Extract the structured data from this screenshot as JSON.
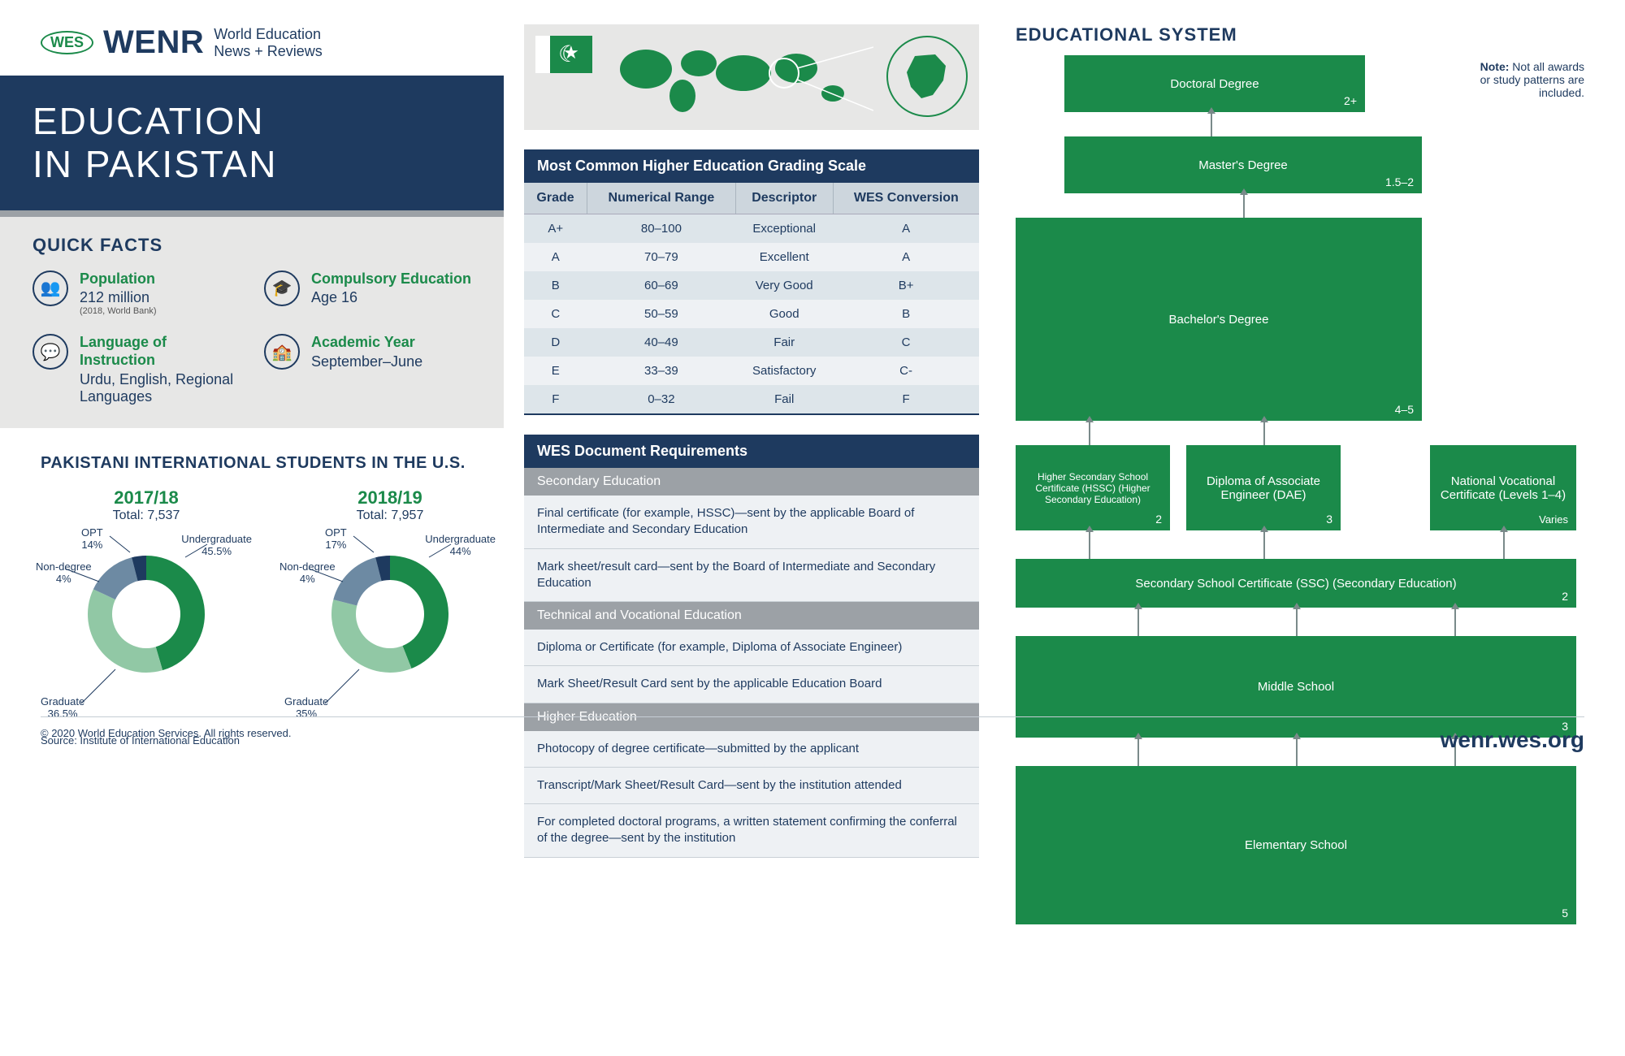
{
  "header": {
    "wes": "WES",
    "wenr": "WENR",
    "sub1": "World Education",
    "sub2": "News + Reviews"
  },
  "title": {
    "line1": "EDUCATION",
    "line2": "IN PAKISTAN"
  },
  "quick_facts": {
    "title": "QUICK FACTS",
    "items": [
      {
        "label": "Population",
        "value": "212 million",
        "sub": "(2018, World Bank)"
      },
      {
        "label": "Compulsory Education",
        "value": "Age 16",
        "sub": ""
      },
      {
        "label": "Language of Instruction",
        "value": "Urdu, English, Regional Languages",
        "sub": ""
      },
      {
        "label": "Academic Year",
        "value": "September–June",
        "sub": ""
      }
    ]
  },
  "students": {
    "title": "PAKISTANI INTERNATIONAL STUDENTS IN THE U.S.",
    "source": "Source: Institute of International Education",
    "colors": {
      "undergrad": "#1b8a4a",
      "graduate": "#91c8a5",
      "opt": "#6d8aa3",
      "nondegree": "#1e3a5f"
    },
    "labels": {
      "undergrad": "Undergraduate",
      "graduate": "Graduate",
      "opt": "OPT",
      "nondegree": "Non-degree"
    },
    "years": [
      {
        "year": "2017/18",
        "total": "Total: 7,537",
        "undergrad": 45.5,
        "graduate": 36.5,
        "opt": 14,
        "nondegree": 4,
        "undergrad_pct": "45.5%",
        "graduate_pct": "36.5%",
        "opt_pct": "14%",
        "nondegree_pct": "4%"
      },
      {
        "year": "2018/19",
        "total": "Total: 7,957",
        "undergrad": 44,
        "graduate": 35,
        "opt": 17,
        "nondegree": 4,
        "undergrad_pct": "44%",
        "graduate_pct": "35%",
        "opt_pct": "17%",
        "nondegree_pct": "4%"
      }
    ]
  },
  "grading": {
    "title": "Most Common Higher Education Grading Scale",
    "columns": [
      "Grade",
      "Numerical Range",
      "Descriptor",
      "WES Conversion"
    ],
    "rows": [
      [
        "A+",
        "80–100",
        "Exceptional",
        "A"
      ],
      [
        "A",
        "70–79",
        "Excellent",
        "A"
      ],
      [
        "B",
        "60–69",
        "Very Good",
        "B+"
      ],
      [
        "C",
        "50–59",
        "Good",
        "B"
      ],
      [
        "D",
        "40–49",
        "Fair",
        "C"
      ],
      [
        "E",
        "33–39",
        "Satisfactory",
        "C-"
      ],
      [
        "F",
        "0–32",
        "Fail",
        "F"
      ]
    ]
  },
  "doc_req": {
    "title": "WES Document Requirements",
    "sections": [
      {
        "heading": "Secondary Education",
        "items": [
          "Final certificate (for example, HSSC)—sent by the applicable Board of Intermediate and Secondary Education",
          "Mark sheet/result card—sent by the Board of Intermediate and Secondary Education"
        ]
      },
      {
        "heading": "Technical and Vocational Education",
        "items": [
          "Diploma or Certificate (for example, Diploma of Associate Engineer)",
          "Mark Sheet/Result Card sent by the applicable Education Board"
        ]
      },
      {
        "heading": "Higher Education",
        "items": [
          "Photocopy of degree certificate—submitted by the applicant",
          "Transcript/Mark Sheet/Result Card—sent by the institution attended",
          "For completed doctoral programs, a written statement confirming the conferral of the degree—sent by the institution"
        ]
      }
    ]
  },
  "system": {
    "title": "EDUCATIONAL SYSTEM",
    "note_label": "Note:",
    "note": " Not all awards or study patterns are included.",
    "color": "#1b8a4a",
    "boxes": {
      "doctoral": {
        "label": "Doctoral Degree",
        "duration": "2+"
      },
      "master": {
        "label": "Master's Degree",
        "duration": "1.5–2"
      },
      "bachelor": {
        "label": "Bachelor's Degree",
        "duration": "4–5"
      },
      "hssc": {
        "label": "Higher Secondary School Certificate (HSSC) (Higher Secondary Education)",
        "duration": "2"
      },
      "dae": {
        "label": "Diploma of Associate Engineer (DAE)",
        "duration": "3"
      },
      "nvc": {
        "label": "National Vocational Certificate (Levels 1–4)",
        "duration": "Varies"
      },
      "ssc": {
        "label": "Secondary School Certificate (SSC) (Secondary Education)",
        "duration": "2"
      },
      "middle": {
        "label": "Middle School",
        "duration": "3"
      },
      "elementary": {
        "label": "Elementary School",
        "duration": "5"
      }
    }
  },
  "footer": {
    "copyright": "© 2020 World Education Services. All rights reserved.",
    "url": "wenr.wes.org"
  }
}
